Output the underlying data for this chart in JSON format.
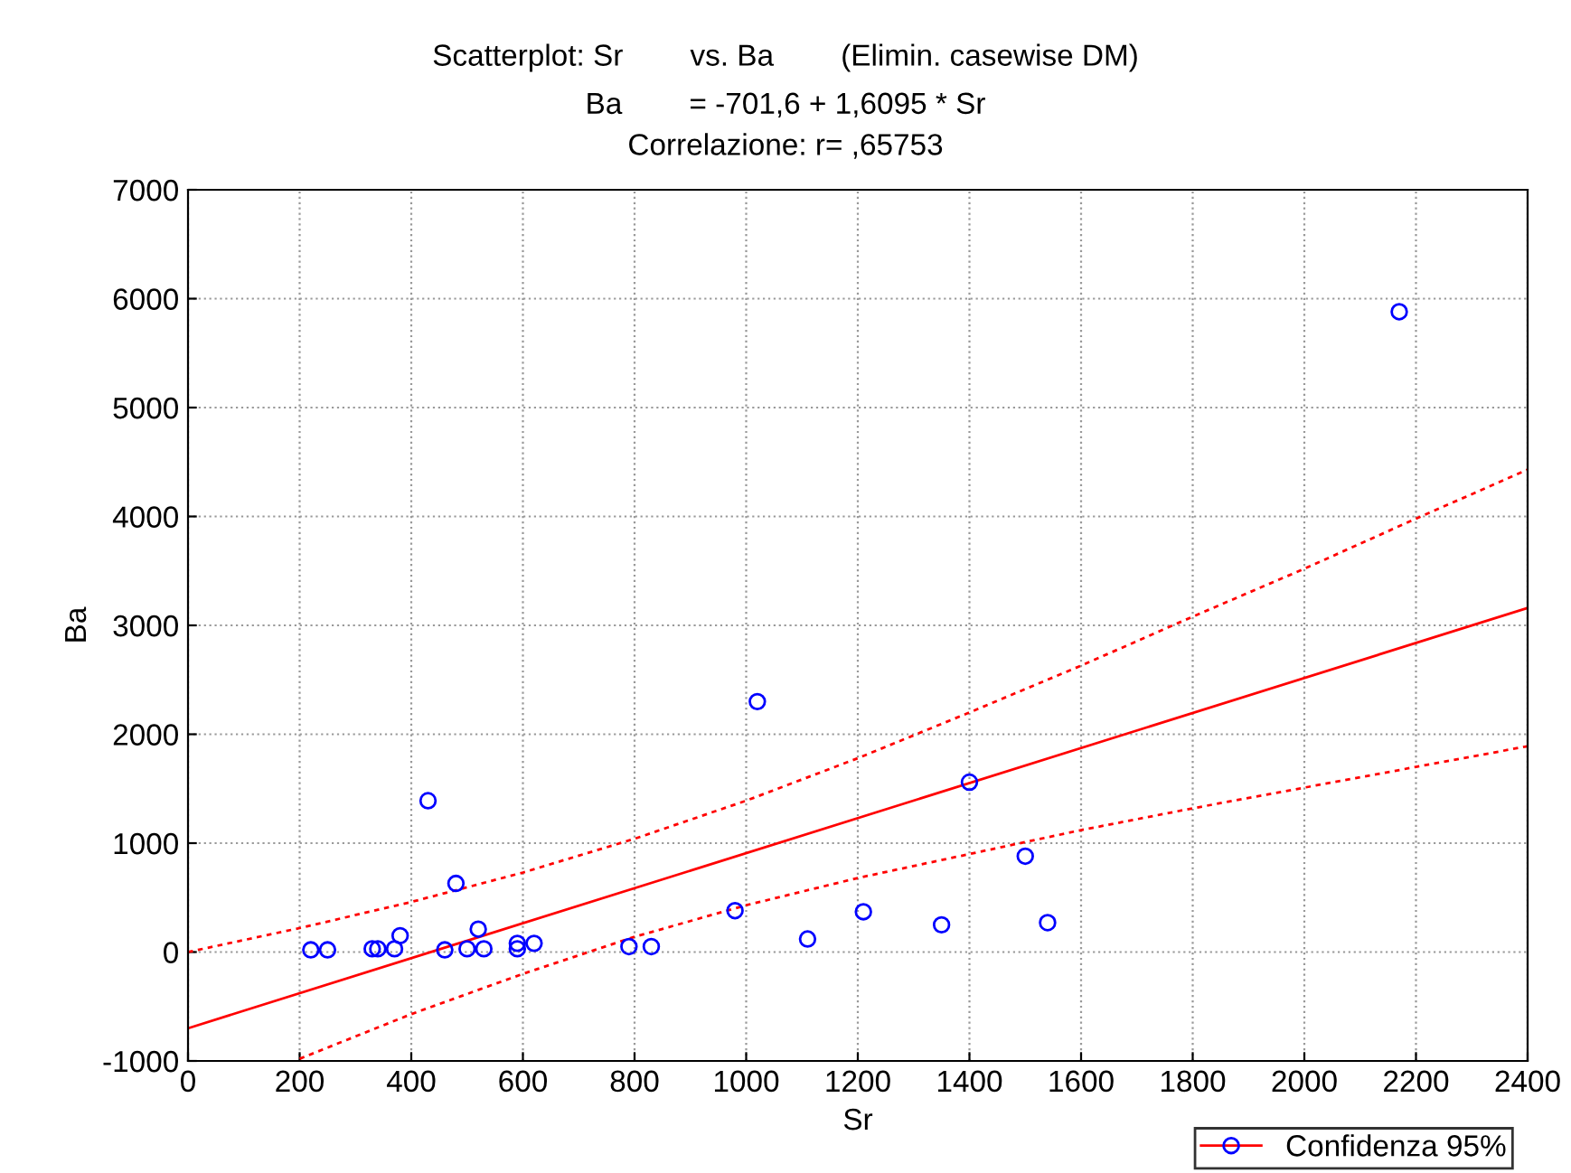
{
  "chart_data": {
    "type": "scatter",
    "title": "Scatterplot: Sr        vs. Ba        (Elimin. casewise DM)",
    "subtitle": "Ba        = -701,6 + 1,6095 * Sr\nCorrelazione: r= ,65753",
    "xlabel": "Sr",
    "ylabel": "Ba",
    "xlim": [
      0,
      2400
    ],
    "xticks": [
      0,
      200,
      400,
      600,
      800,
      1000,
      1200,
      1400,
      1600,
      1800,
      2000,
      2200,
      2400
    ],
    "ylim": [
      -1000,
      7000
    ],
    "yticks": [
      -1000,
      0,
      1000,
      2000,
      3000,
      4000,
      5000,
      6000,
      7000
    ],
    "grid": true,
    "legend": "bottom right",
    "series": [
      {
        "name": "Confidenza 95%",
        "marker": "circle",
        "color": "#0000ff",
        "x": [
          220,
          250,
          330,
          340,
          370,
          380,
          430,
          460,
          480,
          500,
          520,
          530,
          590,
          590,
          620,
          790,
          830,
          980,
          1020,
          1110,
          1210,
          1350,
          1400,
          1500,
          1540,
          2170
        ],
        "values": [
          20,
          20,
          30,
          30,
          30,
          150,
          1390,
          20,
          630,
          30,
          210,
          30,
          30,
          80,
          80,
          50,
          50,
          380,
          2300,
          120,
          370,
          250,
          1560,
          880,
          270,
          5880
        ]
      },
      {
        "type": "line",
        "color": "#ff0000",
        "line_style": "solid",
        "x": [
          0,
          2400
        ],
        "values": [
          -700,
          3160
        ]
      },
      {
        "type": "line",
        "color": "#ff0000",
        "line_style": "dotted",
        "x": [
          0,
          200,
          400,
          600,
          800,
          1000,
          1200,
          1400,
          1600,
          1800,
          2000,
          2200,
          2400
        ],
        "values": [
          0,
          220,
          460,
          730,
          1040,
          1390,
          1780,
          2200,
          2630,
          3080,
          3520,
          3980,
          4430
        ]
      },
      {
        "type": "line",
        "color": "#ff0000",
        "line_style": "dotted",
        "x": [
          200,
          400,
          600,
          800,
          1000,
          1200,
          1400,
          1600,
          1800,
          2000,
          2200,
          2400
        ],
        "values": [
          -980,
          -570,
          -200,
          140,
          430,
          680,
          900,
          1120,
          1320,
          1510,
          1700,
          1890
        ]
      }
    ]
  }
}
